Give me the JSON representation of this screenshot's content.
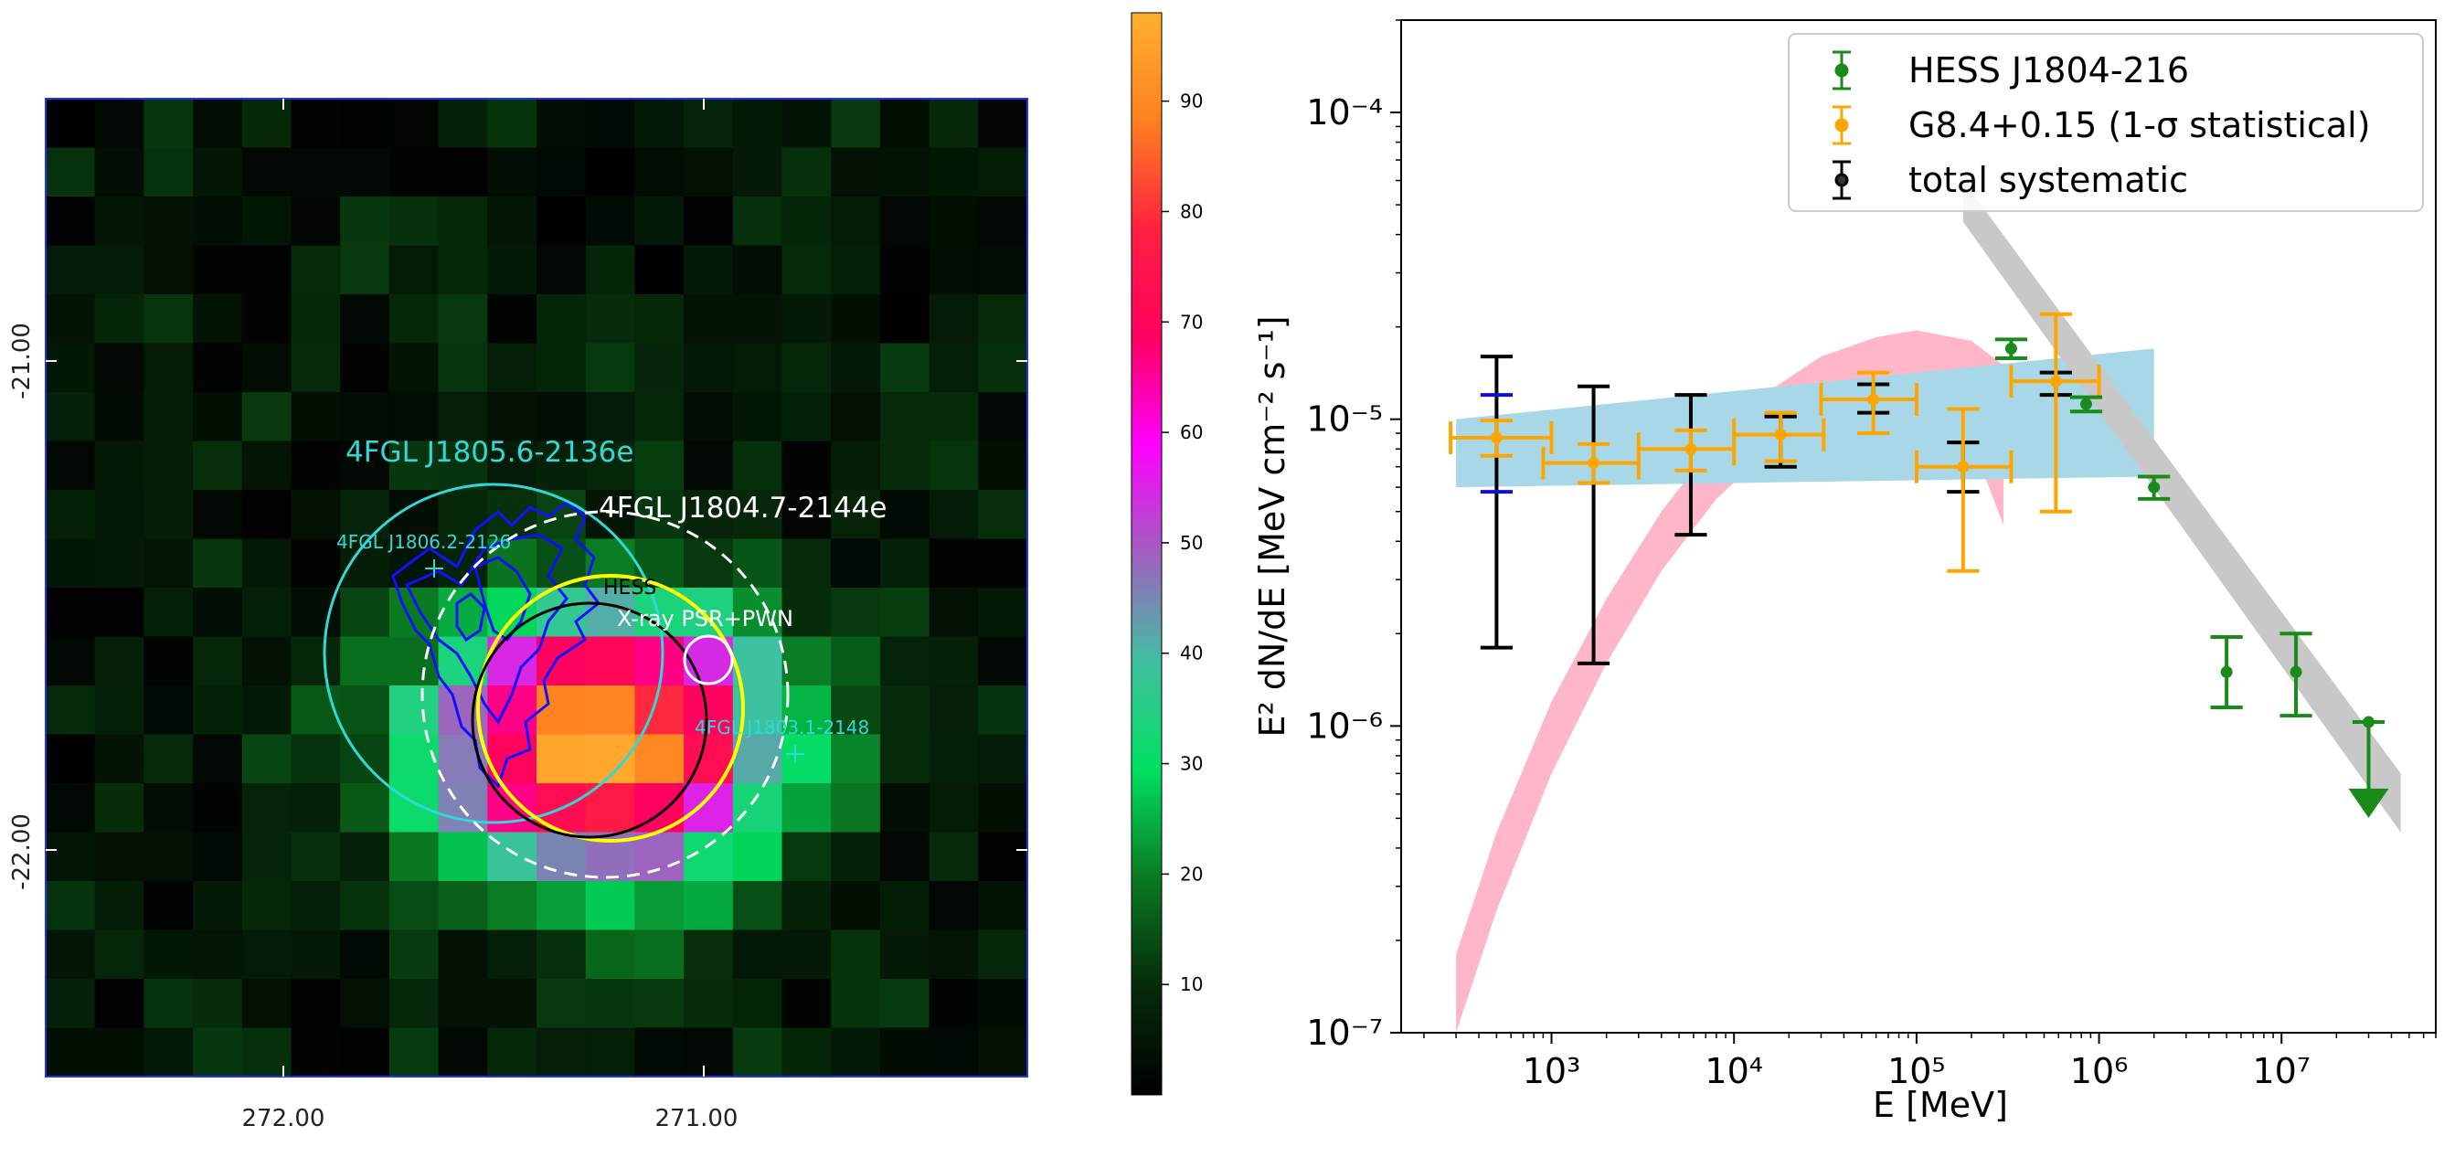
{
  "colors": {
    "cmap_stops": [
      "#000000",
      "#062a0a",
      "#0a7a22",
      "#00e060",
      "#40c0a0",
      "#a060c0",
      "#ff00ff",
      "#ff0060",
      "#ff2040",
      "#ff8020",
      "#ffb030"
    ],
    "hess": "#1a8a1a",
    "g84": "#ffa500",
    "systematic": "#000000",
    "pink_band": "#ffb6c8",
    "blue_band": "#a8d8e8",
    "grey_band": "#c8c8c8",
    "cyan": "#30d8d8",
    "white": "#ffffff",
    "yellow": "#ffff00",
    "blue_contour": "#1010ff"
  },
  "left_map": {
    "x_ticks": [
      "272.00",
      "271.00"
    ],
    "y_ticks": [
      "-21.00",
      "-22.00"
    ],
    "labels": {
      "src1": "4FGL J1805.6-2136e",
      "src2": "4FGL J1804.7-2144e",
      "src3": "4FGL J1806.2-2126",
      "src4": "4FGL J1803.1-2148",
      "hess": "HESS",
      "xray": "X-ray PSR+PWN"
    },
    "colorbar_ticks": [
      "10",
      "20",
      "30",
      "40",
      "50",
      "60",
      "70",
      "80",
      "90"
    ],
    "colorbar_range": [
      0,
      98
    ]
  },
  "chart_data": {
    "type": "scatter",
    "xscale": "log",
    "yscale": "log",
    "xlim": [
      150,
      70000000
    ],
    "ylim": [
      1e-07,
      0.0002
    ],
    "xlabel": "E [MeV]",
    "ylabel": "E² dN/dE [MeV cm⁻² s⁻¹]",
    "x_tick_labels": [
      "10³",
      "10⁴",
      "10⁵",
      "10⁶",
      "10⁷"
    ],
    "y_tick_labels": [
      "10⁻⁷",
      "10⁻⁶",
      "10⁻⁵",
      "10⁻⁴"
    ],
    "legend": [
      "HESS J1804-216",
      "G8.4+0.15 (1-σ statistical)",
      "total systematic"
    ],
    "series": [
      {
        "name": "G8.4+0.15 (1-σ statistical)",
        "x": [
          500,
          1700,
          5800,
          18000,
          58000,
          180000,
          580000
        ],
        "y": [
          8.7e-06,
          7.2e-06,
          8e-06,
          8.9e-06,
          1.16e-05,
          7e-06,
          1.33e-05
        ],
        "xlo": [
          280,
          900,
          3000,
          10000,
          30000,
          100000,
          330000
        ],
        "xhi": [
          1000,
          3000,
          10000,
          31000,
          100000,
          330000,
          1000000
        ],
        "ylo": [
          7.6e-06,
          6.2e-06,
          6.8e-06,
          7.3e-06,
          9e-06,
          3.2e-06,
          5e-06
        ],
        "yhi": [
          9.9e-06,
          8.3e-06,
          9.2e-06,
          1.05e-05,
          1.42e-05,
          1.08e-05,
          2.2e-05
        ]
      },
      {
        "name": "total systematic",
        "x": [
          500,
          1700,
          5800,
          18000,
          58000,
          180000,
          580000
        ],
        "ylo": [
          1.8e-06,
          1.6e-06,
          4.2e-06,
          7e-06,
          1.05e-05,
          5.8e-06,
          1.2e-05
        ],
        "yhi": [
          1.6e-05,
          1.28e-05,
          1.2e-05,
          1.02e-05,
          1.3e-05,
          8.4e-06,
          1.42e-05
        ]
      },
      {
        "name": "extra systematic (blue caps)",
        "x": [
          500
        ],
        "ylo": [
          5.8e-06
        ],
        "yhi": [
          1.2e-05
        ]
      },
      {
        "name": "HESS J1804-216",
        "x": [
          330000,
          850000,
          2000000,
          5000000,
          12000000
        ],
        "y": [
          1.7e-05,
          1.12e-05,
          6e-06,
          1.5e-06,
          1.5e-06
        ],
        "ylo": [
          1.58e-05,
          1.06e-05,
          5.5e-06,
          1.15e-06,
          1.08e-06
        ],
        "yhi": [
          1.82e-05,
          1.18e-05,
          6.5e-06,
          1.95e-06,
          2e-06
        ],
        "upper_limit": {
          "x": 30000000,
          "y": 1.03e-06,
          "arrow_to": 5.6e-07
        }
      }
    ],
    "bands": [
      {
        "name": "pink model",
        "x": [
          300,
          500,
          1000,
          2000,
          4000,
          8000,
          16000,
          30000,
          60000,
          100000,
          200000,
          300000
        ],
        "upper": [
          1.8e-07,
          4.5e-07,
          1.2e-06,
          2.6e-06,
          5e-06,
          8.5e-06,
          1.25e-05,
          1.6e-05,
          1.85e-05,
          1.95e-05,
          1.8e-05,
          1.5e-05
        ],
        "lower": [
          1e-07,
          2.5e-07,
          7e-07,
          1.6e-06,
          3.2e-06,
          5.5e-06,
          8e-06,
          1e-05,
          1.08e-05,
          1.05e-05,
          8.5e-06,
          4.5e-06
        ]
      },
      {
        "name": "blue power law",
        "x": [
          300,
          2000000
        ],
        "upper": [
          1e-05,
          1.7e-05
        ],
        "lower": [
          6e-06,
          6.5e-06
        ]
      },
      {
        "name": "grey power law",
        "x": [
          180000,
          45000000
        ],
        "upper": [
          6e-05,
          7e-07
        ],
        "lower": [
          4.4e-05,
          4.5e-07
        ]
      }
    ]
  }
}
